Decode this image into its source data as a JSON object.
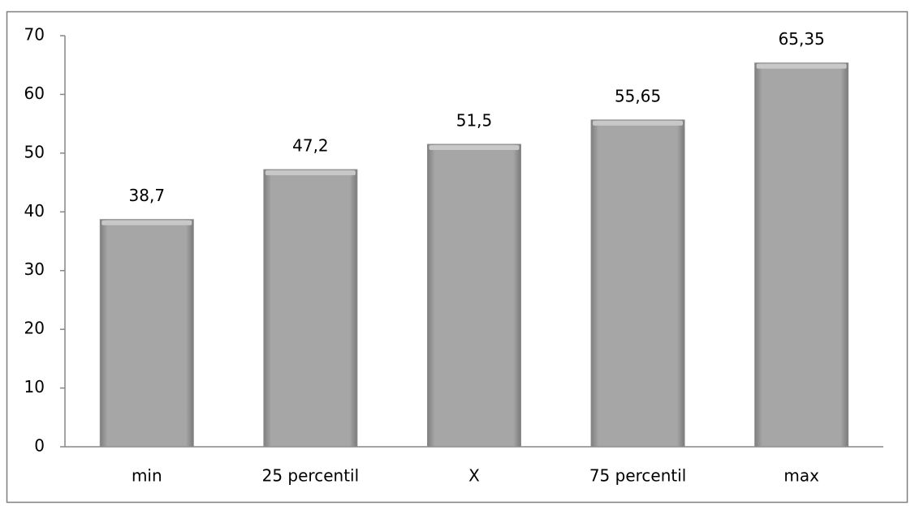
{
  "chart_data": {
    "type": "bar",
    "categories": [
      "min",
      "25 percentil",
      "X",
      "75 percentil",
      "max"
    ],
    "values": [
      38.7,
      47.2,
      51.5,
      55.65,
      65.35
    ],
    "value_labels": [
      "38,7",
      "47,2",
      "51,5",
      "55,65",
      "65,35"
    ],
    "color": "#a6a6a6",
    "ylim": [
      0,
      70
    ],
    "yticks": [
      0,
      10,
      20,
      30,
      40,
      50,
      60,
      70
    ],
    "grid": false
  }
}
